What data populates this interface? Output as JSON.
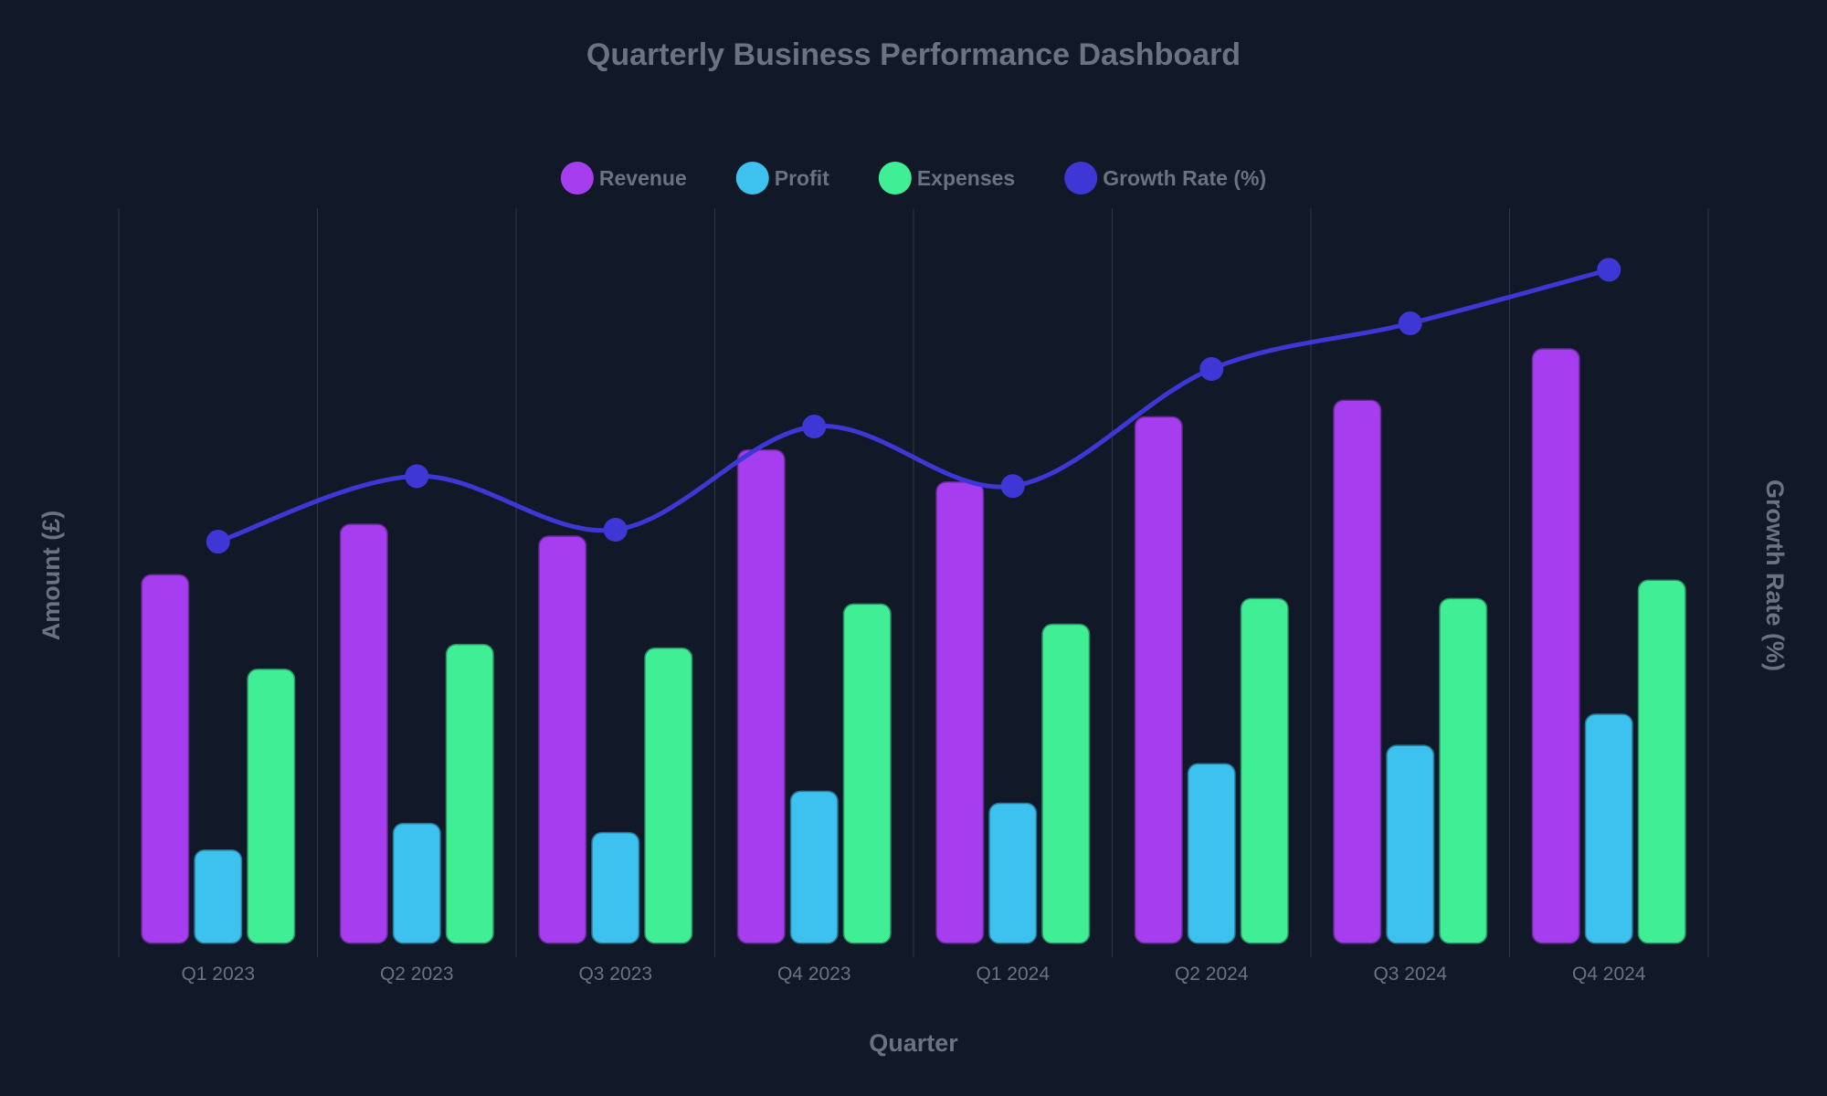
{
  "chart_data": {
    "type": "bar",
    "title": "Quarterly Business Performance Dashboard",
    "xlabel": "Quarter",
    "ylabel": "Amount (£)",
    "y2label": "Growth Rate (%)",
    "categories": [
      "Q1 2023",
      "Q2 2023",
      "Q3 2023",
      "Q4 2023",
      "Q1 2024",
      "Q2 2024",
      "Q3 2024",
      "Q4 2024"
    ],
    "series": [
      {
        "name": "Revenue",
        "type": "bar",
        "axis": "left",
        "color": "#A63DEE",
        "values": [
          400,
          455,
          442,
          536,
          501,
          572,
          590,
          646
        ]
      },
      {
        "name": "Profit",
        "type": "bar",
        "axis": "left",
        "color": "#3DC1EE",
        "values": [
          100,
          129,
          119,
          164,
          151,
          194,
          214,
          248
        ]
      },
      {
        "name": "Expenses",
        "type": "bar",
        "axis": "left",
        "color": "#40EE96",
        "values": [
          297,
          324,
          320,
          368,
          346,
          374,
          374,
          394
        ]
      },
      {
        "name": "Growth Rate (%)",
        "type": "line",
        "axis": "right",
        "smooth": true,
        "color": "#3E37D6",
        "values": [
          5.2,
          8.5,
          5.8,
          11.0,
          8.0,
          13.9,
          16.2,
          18.9
        ]
      }
    ],
    "ylim": [
      0,
      800
    ],
    "y2lim": [
      -15,
      22
    ],
    "legend_position": "top-center",
    "grid": "vertical-only",
    "show_y_ticks": false
  },
  "colors": {
    "background": "#111827",
    "grid": "#374151",
    "text_title": "#6B7280",
    "text_ticks": "#6B7280",
    "text_legend": "#6B7280"
  }
}
